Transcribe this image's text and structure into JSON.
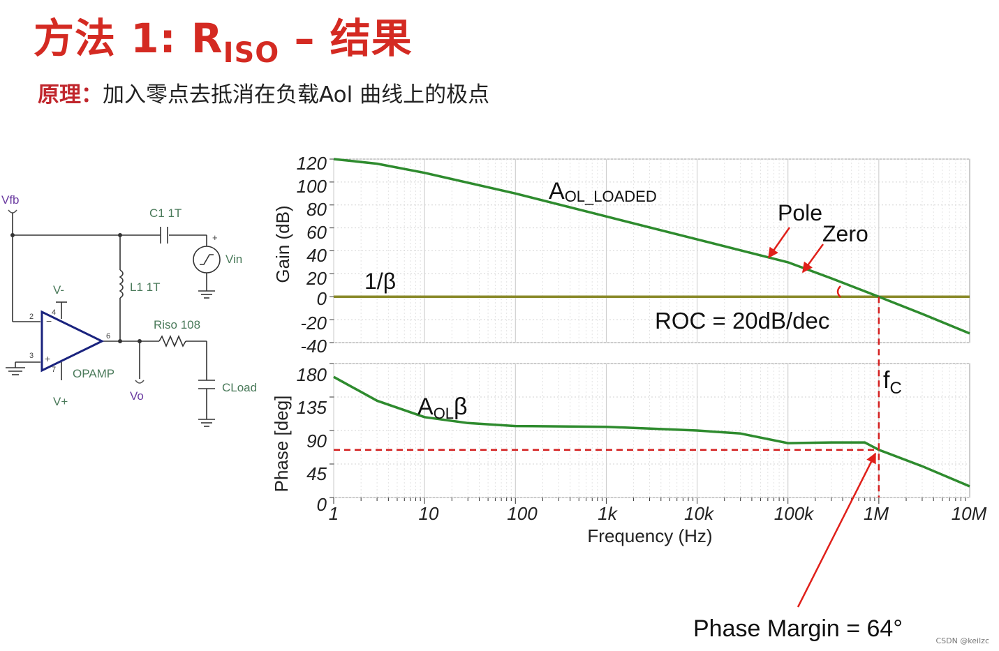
{
  "slide": {
    "title_main": "方法 1: R",
    "title_sub": "ISO",
    "title_tail": " – 结果",
    "principle_label": "原理：",
    "principle_text": "加入零点去抵消在负载Aol 曲线上的极点",
    "watermark": "CSDN @keilzc"
  },
  "circuit": {
    "vfb": "Vfb",
    "c1": "C1 1T",
    "vin": "Vin",
    "l1": "L1 1T",
    "vminus": "V-",
    "vplus": "V+",
    "riso": "Riso 108",
    "opamp": "OPAMP",
    "vo": "Vo",
    "cload": "CLoad",
    "pin2": "2",
    "pin3": "3",
    "pin4": "4",
    "pin6": "6",
    "pin7": "7",
    "plus_sign": "+",
    "minus_sign": "−"
  },
  "chart_data": [
    {
      "type": "line",
      "ylabel": "Gain (dB)",
      "x_scale": "log",
      "xlim": [
        1,
        10000000
      ],
      "ylim": [
        -40,
        120
      ],
      "yticks": [
        "120",
        "100",
        "80",
        "60",
        "40",
        "20",
        "0",
        "-20",
        "-40"
      ],
      "grid": true,
      "series": [
        {
          "name": "A_OL_LOADED",
          "color": "#2e8b2e",
          "x": [
            1,
            3,
            10,
            100,
            1000,
            10000,
            100000,
            300000,
            1000000,
            3000000,
            10000000
          ],
          "y": [
            120,
            116,
            108,
            90,
            70,
            50,
            30,
            16,
            0,
            -15,
            -32
          ]
        },
        {
          "name": "1/β",
          "color": "#8a8a2a",
          "x": [
            1,
            10000000
          ],
          "y": [
            0,
            0
          ]
        }
      ],
      "annotations": {
        "aol_label_main": "A",
        "aol_label_sub": "OL_LOADED",
        "beta_label": "1/β",
        "pole": "Pole",
        "zero": "Zero",
        "roc": "ROC = 20dB/dec"
      }
    },
    {
      "type": "line",
      "ylabel": "Phase [deg]",
      "xlabel": "Frequency (Hz)",
      "x_scale": "log",
      "xlim": [
        1,
        10000000
      ],
      "ylim": [
        0,
        180
      ],
      "yticks": [
        "180",
        "135",
        "90",
        "45",
        "0"
      ],
      "xticks": [
        "1",
        "10",
        "100",
        "1k",
        "10k",
        "100k",
        "1M",
        "10M"
      ],
      "grid": true,
      "series": [
        {
          "name": "AOLβ",
          "color": "#2e8b2e",
          "x": [
            1,
            3,
            10,
            30,
            100,
            1000,
            10000,
            30000,
            100000,
            300000,
            700000,
            1000000,
            3000000,
            10000000
          ],
          "y": [
            162,
            130,
            108,
            100,
            96,
            95,
            90,
            86,
            73,
            74,
            74,
            64,
            42,
            15
          ]
        }
      ],
      "annotations": {
        "aolb_main": "A",
        "aolb_sub": "OL",
        "aolb_tail": "β",
        "fc_main": "f",
        "fc_sub": "C",
        "phase_margin": "Phase Margin = 64°"
      },
      "phase_margin_deg": 64,
      "fc_hz": 1000000
    }
  ]
}
